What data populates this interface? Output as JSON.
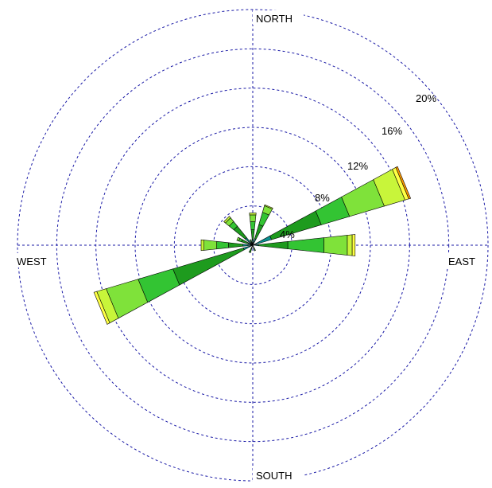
{
  "chart_data": {
    "type": "wind-rose",
    "directions": {
      "north": "NORTH",
      "south": "SOUTH",
      "east": "EAST",
      "west": "WEST"
    },
    "radial_ticks": [
      "4%",
      "8%",
      "12%",
      "16%",
      "20%"
    ],
    "radial_values": [
      4,
      8,
      12,
      16,
      20
    ],
    "rmax": 24,
    "bin_colors": [
      "#0a8f8f",
      "#1e9b1e",
      "#33c433",
      "#7fe23a",
      "#c8f53a",
      "#ffff44",
      "#ff9900",
      "#000000"
    ],
    "petals": [
      {
        "direction_deg": 0,
        "segments": [
          0.6,
          1.6,
          2.4,
          3.1,
          3.3
        ]
      },
      {
        "direction_deg": 22.5,
        "segments": [
          0.7,
          2.2,
          3.5,
          4.2,
          4.3
        ]
      },
      {
        "direction_deg": 67.5,
        "segments": [
          2.0,
          7.3,
          10.3,
          14.0,
          16.2,
          16.6,
          16.8
        ]
      },
      {
        "direction_deg": 90,
        "segments": [
          0.6,
          3.6,
          7.3,
          9.7,
          10.2,
          10.5
        ]
      },
      {
        "direction_deg": 157.5,
        "segments": [
          0.3,
          0.6
        ]
      },
      {
        "direction_deg": 202.5,
        "segments": [
          0.3,
          0.8
        ]
      },
      {
        "direction_deg": 247.5,
        "segments": [
          1.0,
          8.5,
          12.2,
          15.6,
          16.6,
          16.9
        ]
      },
      {
        "direction_deg": 270,
        "segments": [
          1.0,
          2.5,
          3.7,
          5.0,
          5.3
        ]
      },
      {
        "direction_deg": 292.5,
        "segments": [
          0.5,
          1.2,
          1.5,
          1.7
        ]
      },
      {
        "direction_deg": 315,
        "segments": [
          1.0,
          2.5,
          3.1,
          3.6,
          3.8
        ]
      },
      {
        "direction_deg": 337.5,
        "segments": [
          0.3,
          0.6
        ]
      }
    ]
  }
}
